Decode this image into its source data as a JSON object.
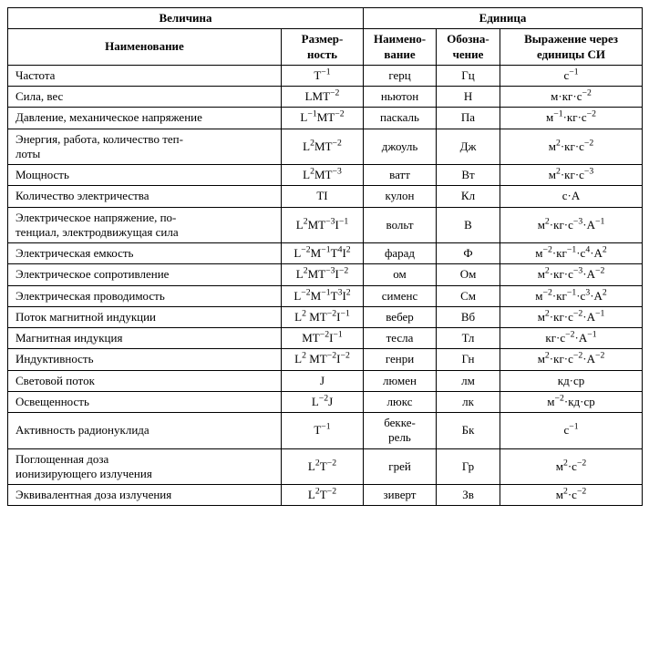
{
  "headers": {
    "group_quantity": "Величина",
    "group_unit": "Единица",
    "name": "Наименование",
    "dimension": "Размер-<br>ность",
    "unit_name": "Наимено-<br>вание",
    "symbol": "Обозна-<br>чение",
    "si_expr": "Выражение через единицы СИ"
  },
  "rows": [
    {
      "name": "Частота",
      "dim": "T<sup>&minus;1</sup>",
      "unit": "герц",
      "sym": "Гц",
      "si": "с<sup>&minus;1</sup>"
    },
    {
      "name": "Сила, вес",
      "dim": "LMT<sup>&minus;2</sup>",
      "unit": "ньютон",
      "sym": "Н",
      "si": "м&middot;кг&middot;с<sup>&minus;2</sup>"
    },
    {
      "name": "Давление, механическое напряжение",
      "dim": "L<sup>&minus;1</sup>MT<sup>&minus;2</sup>",
      "unit": "паскаль",
      "sym": "Па",
      "si": "м<sup>&minus;1</sup>&middot;кг&middot;с<sup>&minus;2</sup>"
    },
    {
      "name": "Энергия, работа, количество теп-<br>лоты",
      "dim": "L<sup>2</sup>MT<sup>&minus;2</sup>",
      "unit": "джоуль",
      "sym": "Дж",
      "si": "м<sup>2</sup>&middot;кг&middot;с<sup>&minus;2</sup>"
    },
    {
      "name": "Мощность",
      "dim": "L<sup>2</sup>MT<sup>&minus;3</sup>",
      "unit": "ватт",
      "sym": "Вт",
      "si": "м<sup>2</sup>&middot;кг&middot;с<sup>&minus;3</sup>"
    },
    {
      "name": "Количество электричества",
      "dim": "TI",
      "unit": "кулон",
      "sym": "Кл",
      "si": "с&middot;А"
    },
    {
      "name": "Электрическое напряжение, по-<br>тенциал, электродвижущая сила",
      "dim": "L<sup>2</sup>MT<sup>&minus;3</sup>I<sup>&minus;1</sup>",
      "unit": "вольт",
      "sym": "В",
      "si": "м<sup>2</sup>&middot;кг&middot;с<sup>&minus;3</sup>&middot;А<sup>&minus;1</sup>"
    },
    {
      "name": "Электрическая емкость",
      "dim": "L<sup>&minus;2</sup>M<sup>&minus;1</sup>T<sup>4</sup>I<sup>2</sup>",
      "unit": "фарад",
      "sym": "Ф",
      "si": "м<sup>&minus;2</sup>&middot;кг<sup>&minus;1</sup>&middot;с<sup>4</sup>&middot;А<sup>2</sup>"
    },
    {
      "name": "Электрическое сопротивление",
      "dim": "L<sup>2</sup>MT<sup>&minus;3</sup>I<sup>&minus;2</sup>",
      "unit": "ом",
      "sym": "Ом",
      "si": "м<sup>2</sup>&middot;кг&middot;с<sup>&minus;3</sup>&middot;А<sup>&minus;2</sup>"
    },
    {
      "name": "Электрическая проводимость",
      "dim": "L<sup>&minus;2</sup>M<sup>&minus;1</sup>T<sup>3</sup>I<sup>2</sup>",
      "unit": "сименс",
      "sym": "См",
      "si": "м<sup>&minus;2</sup>&middot;кг<sup>&minus;1</sup>&middot;с<sup>3</sup>&middot;А<sup>2</sup>"
    },
    {
      "name": "Поток магнитной индукции",
      "dim": "L<sup>2</sup> MT<sup>&minus;2</sup>I<sup>&minus;1</sup>",
      "unit": "вебер",
      "sym": "Вб",
      "si": "м<sup>2</sup>&middot;кг&middot;с<sup>&minus;2</sup>&middot;А<sup>&minus;1</sup>"
    },
    {
      "name": "Магнитная индукция",
      "dim": "MT<sup>&minus;2</sup>I<sup>&minus;1</sup>",
      "unit": "тесла",
      "sym": "Тл",
      "si": "кг&middot;с<sup>&minus;2</sup>&middot;А<sup>&minus;1</sup>"
    },
    {
      "name": "Индуктивность",
      "dim": "L<sup>2</sup> MT<sup>&minus;2</sup>I<sup>&minus;2</sup>",
      "unit": "генри",
      "sym": "Гн",
      "si": "м<sup>2</sup>&middot;кг&middot;с<sup>&minus;2</sup>&middot;А<sup>&minus;2</sup>"
    },
    {
      "name": "Световой поток",
      "dim": "J",
      "unit": "люмен",
      "sym": "лм",
      "si": "кд&middot;ср"
    },
    {
      "name": "Освещенность",
      "dim": "L<sup>&minus;2</sup>J",
      "unit": "люкс",
      "sym": "лк",
      "si": "м<sup>&minus;2</sup>&middot;кд&middot;ср"
    },
    {
      "name": "Активность радионуклида",
      "dim": "T<sup>&minus;1</sup>",
      "unit": "бекке-<br>рель",
      "sym": "Бк",
      "si": "с<sup>&minus;1</sup>"
    },
    {
      "name": "Поглощенная доза<br>ионизирующего излучения",
      "dim": "L<sup>2</sup>T<sup>&minus;2</sup>",
      "unit": "грей",
      "sym": "Гр",
      "si": "м<sup>2</sup>&middot;с<sup>&minus;2</sup>"
    },
    {
      "name": "Эквивалентная доза излучения",
      "dim": "L<sup>2</sup>T<sup>&minus;2</sup>",
      "unit": "зиверт",
      "sym": "Зв",
      "si": "м<sup>2</sup>&middot;с<sup>&minus;2</sup>"
    }
  ]
}
